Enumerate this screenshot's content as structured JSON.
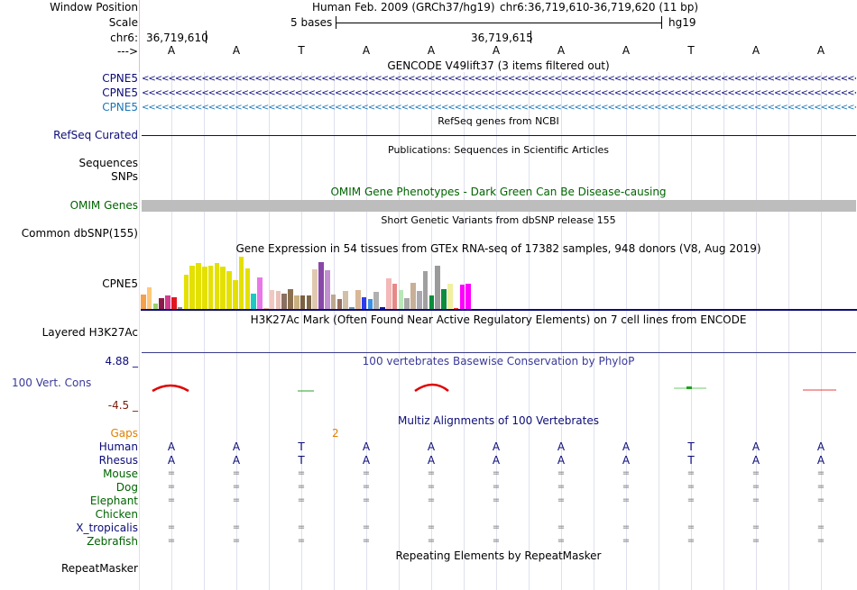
{
  "header": {
    "window_position_label": "Window Position",
    "assembly": "Human Feb. 2009 (GRCh37/hg19)",
    "position": "chr6:36,719,610-36,719,620 (11 bp)",
    "scale_label": "Scale",
    "scale_text": "5 bases",
    "scale_db": "hg19",
    "chrom_label": "chr6:",
    "coord_left": "36,719,610",
    "coord_mid": "36,719,615",
    "strand_label": "--->"
  },
  "sequence": [
    "A",
    "A",
    "T",
    "A",
    "A",
    "A",
    "A",
    "A",
    "T",
    "A",
    "A"
  ],
  "gencode": {
    "title": "GENCODE V49lift37 (3 items filtered out)",
    "items": [
      {
        "label": "CPNE5",
        "color": "#0c0c78"
      },
      {
        "label": "CPNE5",
        "color": "#0c0c78"
      },
      {
        "label": "CPNE5",
        "color": "#1a76b8"
      }
    ]
  },
  "refseq": {
    "title": "RefSeq genes from NCBI",
    "label": "RefSeq Curated"
  },
  "publications": {
    "title": "Publications: Sequences in Scientific Articles",
    "label1": "Sequences",
    "label2": "SNPs"
  },
  "omim": {
    "title": "OMIM Gene Phenotypes - Dark Green Can Be Disease-causing",
    "label": "OMIM Genes",
    "color": "#006400"
  },
  "snp": {
    "title": "Short Genetic Variants from dbSNP release 155",
    "label": "Common dbSNP(155)"
  },
  "gtex": {
    "title": "Gene Expression in 54 tissues from GTEx RNA-seq of 17382 samples, 948 donors (V8, Aug 2019)",
    "label": "CPNE5",
    "values": [
      16,
      24,
      6,
      12,
      15,
      13,
      2,
      38,
      48,
      51,
      47,
      48,
      51,
      47,
      42,
      32,
      58,
      45,
      17,
      35,
      1,
      21,
      20,
      17,
      22,
      15,
      15,
      15,
      44,
      52,
      43,
      16,
      11,
      20,
      2,
      21,
      13,
      11,
      19,
      2,
      34,
      28,
      21,
      12,
      29,
      20,
      42,
      15,
      48,
      22,
      28,
      1,
      27,
      28
    ],
    "colors": [
      "#f5a04a",
      "#ffc87a",
      "#9ad16a",
      "#8b1a4a",
      "#d23c8c",
      "#e0181e",
      "#8a8a8a",
      "#e4e000",
      "#e4e000",
      "#e4e000",
      "#e4e000",
      "#e4e000",
      "#e4e000",
      "#e4e000",
      "#e4e000",
      "#e4e000",
      "#e4e000",
      "#e4e000",
      "#1fc8c0",
      "#e878e8",
      "#e8b8a0",
      "#f0c8c0",
      "#e8c0b8",
      "#8a7060",
      "#8a7050",
      "#c8b080",
      "#7c6040",
      "#7c6848",
      "#e0c8b0",
      "#8848a8",
      "#c090d0",
      "#bca890",
      "#987060",
      "#d0c0a8",
      "#7090b0",
      "#d8b898",
      "#2c3cf0",
      "#3c90e0",
      "#b0b0b0",
      "#1414a0",
      "#f4b8b8",
      "#e88888",
      "#b8e8b8",
      "#a8a8a8",
      "#c8b098",
      "#aca8b0",
      "#a0a0a0",
      "#0c8c3c",
      "#9a9a9a",
      "#0c8c3c",
      "#f0f0a0",
      "#ff2c2c",
      "#ff00ff",
      "#ff00ff"
    ]
  },
  "h3k27ac": {
    "title": "H3K27Ac Mark (Often Found Near Active Regulatory Elements) on 7 cell lines from ENCODE",
    "label": "Layered H3K27Ac"
  },
  "phylop": {
    "title": "100 vertebrates Basewise Conservation by PhyloP",
    "label": "100 Vert. Cons",
    "max": "4.88 _",
    "min": "-4.5 _"
  },
  "multiz": {
    "title": "Multiz Alignments of 100 Vertebrates",
    "gaps_label": "Gaps",
    "gap_count": "2",
    "species": [
      {
        "name": "Human",
        "color": "#0c0c78",
        "type": "seq",
        "bases": [
          "A",
          "A",
          "T",
          "A",
          "A",
          "A",
          "A",
          "A",
          "T",
          "A",
          "A"
        ]
      },
      {
        "name": "Rhesus",
        "color": "#0c0c78",
        "type": "seq",
        "bases": [
          "A",
          "A",
          "T",
          "A",
          "A",
          "A",
          "A",
          "A",
          "T",
          "A",
          "A"
        ]
      },
      {
        "name": "Mouse",
        "color": "#006400",
        "type": "eq"
      },
      {
        "name": "Dog",
        "color": "#006400",
        "type": "eq"
      },
      {
        "name": "Elephant",
        "color": "#006400",
        "type": "eq"
      },
      {
        "name": "Chicken",
        "color": "#006400",
        "type": "none"
      },
      {
        "name": "X_tropicalis",
        "color": "#0c0c78",
        "type": "eq"
      },
      {
        "name": "Zebrafish",
        "color": "#006400",
        "type": "eq"
      }
    ],
    "eq_symbol": "="
  },
  "repeatmasker": {
    "title": "Repeating Elements by RepeatMasker",
    "label": "RepeatMasker"
  }
}
